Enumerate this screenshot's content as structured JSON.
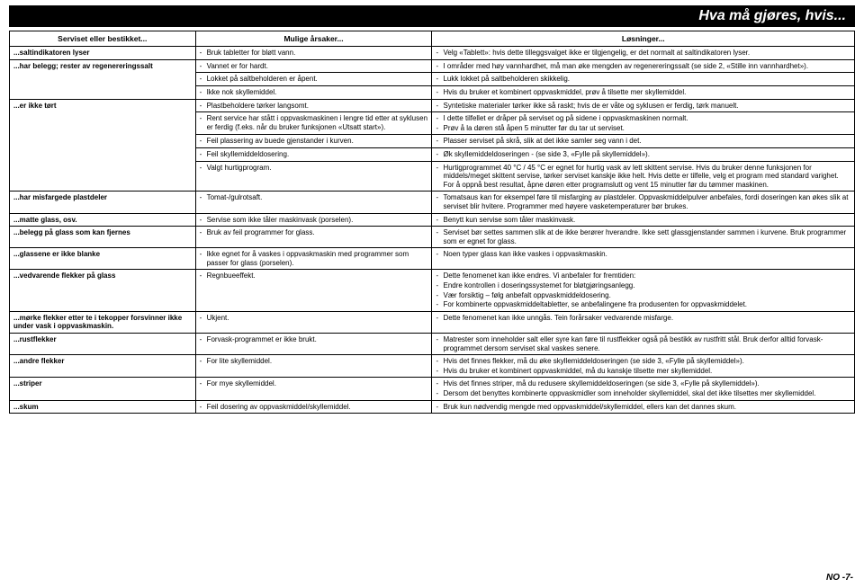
{
  "title": "Hva må gjøres, hvis...",
  "footer": "NO -7-",
  "headers": {
    "c1": "Serviset eller bestikket...",
    "c2": "Mulige årsaker...",
    "c3": "Løsninger..."
  },
  "rows": [
    {
      "c1": "...saltindikatoren lyser",
      "c2": [
        "Bruk tabletter for bløtt vann."
      ],
      "c3": [
        "Velg «Tablett»: hvis dette tilleggsvalget ikke er tilgjengelig, er det normalt at saltindikatoren lyser."
      ]
    },
    {
      "c1": "...har belegg; rester av regenereringssalt",
      "c1rs": 3,
      "c2": [
        "Vannet er for hardt."
      ],
      "c3": [
        "I områder med høy vannhardhet, må man øke mengden av regenereringssalt (se side 2, «Stille inn vannhardhet»)."
      ]
    },
    {
      "c2": [
        "Lokket på saltbeholderen er åpent."
      ],
      "c3": [
        "Lukk lokket på saltbeholderen skikkelig."
      ]
    },
    {
      "c2": [
        "Ikke nok skyllemiddel."
      ],
      "c3": [
        "Hvis du bruker et kombinert oppvaskmiddel, prøv å tilsette mer skyllemiddel."
      ]
    },
    {
      "c1": "...er ikke tørt",
      "c1rs": 5,
      "c2": [
        "Plastbeholdere tørker langsomt."
      ],
      "c3": [
        "Syntetiske materialer tørker ikke så raskt; hvis de er våte og syklusen er ferdig, tørk manuelt."
      ]
    },
    {
      "c2": [
        "Rent service har stått i oppvaskmaskinen i lengre tid etter at syklusen er ferdig (f.eks. når du bruker funksjonen «Utsatt start»)."
      ],
      "c3": [
        "I dette tilfellet er dråper på serviset og på sidene i oppvaskmaskinen normalt.",
        "Prøv å la døren stå åpen 5 minutter før du tar ut serviset."
      ]
    },
    {
      "c2": [
        "Feil plassering av buede gjenstander i kurven."
      ],
      "c3": [
        "Plasser serviset på skrå, slik at det ikke samler seg vann i det."
      ]
    },
    {
      "c2": [
        "Feil skyllemiddeldosering."
      ],
      "c3": [
        "Øk skyllemiddeldoseringen - (se side 3, «Fylle på skyllemiddel»)."
      ]
    },
    {
      "c2": [
        "Valgt hurtigprogram."
      ],
      "c3": [
        "Hurtigprogrammet 40 °C / 45 °C er egnet for hurtig vask av lett skittent servise. Hvis du bruker denne funksjonen for middels/meget skittent servise, tørker serviset kanskje ikke helt. Hvis dette er tilfelle, velg et program med standard varighet. For å oppnå best resultat, åpne døren etter programslutt og vent 15 minutter før du tømmer maskinen."
      ]
    },
    {
      "c1": "...har misfargede plastdeler",
      "c2": [
        "Tomat-/gulrotsaft."
      ],
      "c3": [
        "Tomatsaus kan for eksempel føre til misfarging av plastdeler. Oppvaskmiddelpulver anbefales, fordi doseringen kan økes slik at serviset blir hvitere. Programmer med høyere vasketemperaturer bør brukes."
      ]
    },
    {
      "c1": "...matte glass, osv.",
      "c2": [
        "Servise som ikke tåler maskinvask (porselen)."
      ],
      "c3": [
        "Benytt kun servise som tåler maskinvask."
      ]
    },
    {
      "c1": "...belegg på glass som kan fjernes",
      "c2": [
        "Bruk av feil programmer for glass."
      ],
      "c3": [
        "Serviset bør settes sammen slik at de ikke berører hverandre. Ikke sett glassgjenstander sammen i kurvene. Bruk programmer som er egnet for glass."
      ]
    },
    {
      "c1": "...glassene er ikke blanke",
      "c2": [
        "Ikke egnet for å vaskes i oppvaskmaskin med programmer som passer for glass (porselen)."
      ],
      "c3": [
        "Noen typer glass kan ikke vaskes i oppvaskmaskin."
      ]
    },
    {
      "c1": "...vedvarende flekker på glass",
      "c2": [
        "Regnbueeffekt."
      ],
      "c3": [
        "Dette fenomenet kan ikke endres. Vi anbefaler for fremtiden:",
        "Endre kontrollen i doseringssystemet for bløtgjøringsanlegg.",
        "Vær forsiktig – følg anbefalt oppvaskmiddeldosering.",
        "For kombinerte oppvaskmiddeltabletter, se anbefalingene fra produsenten for oppvaskmiddelet."
      ]
    },
    {
      "c1": "...mørke flekker etter te i tekopper forsvinner ikke under vask i oppvaskmaskin.",
      "c2": [
        "Ukjent."
      ],
      "c3": [
        "Dette fenomenet kan ikke unngås. Tein forårsaker vedvarende misfarge."
      ]
    },
    {
      "c1": "...rustflekker",
      "c2": [
        "Forvask-programmet er ikke brukt."
      ],
      "c3": [
        "Matrester som inneholder salt eller syre kan føre til rustflekker også på bestikk av rustfritt stål. Bruk derfor alltid forvask-programmet dersom serviset skal vaskes senere."
      ]
    },
    {
      "c1": "...andre flekker",
      "c2": [
        "For lite skyllemiddel."
      ],
      "c3": [
        "Hvis det finnes flekker, må du øke skyllemiddeldoseringen (se side 3, «Fylle på skyllemiddel»).",
        "Hvis du bruker et kombinert oppvaskmiddel, må du kanskje tilsette mer skyllemiddel."
      ]
    },
    {
      "c1": "...striper",
      "c2": [
        "For mye skyllemiddel."
      ],
      "c3": [
        "Hvis det finnes striper, må du redusere skyllemiddeldoseringen (se side 3, «Fylle på skyllemiddel»).",
        "Dersom det benyttes kombinerte oppvaskmidler som inneholder skyllemiddel, skal det ikke tilsettes mer skyllemiddel."
      ]
    },
    {
      "c1": "...skum",
      "c2": [
        "Feil dosering av oppvaskmiddel/skyllemiddel."
      ],
      "c3": [
        "Bruk kun nødvendig mengde med oppvaskmiddel/skyllemiddel, ellers kan det dannes skum."
      ]
    }
  ]
}
